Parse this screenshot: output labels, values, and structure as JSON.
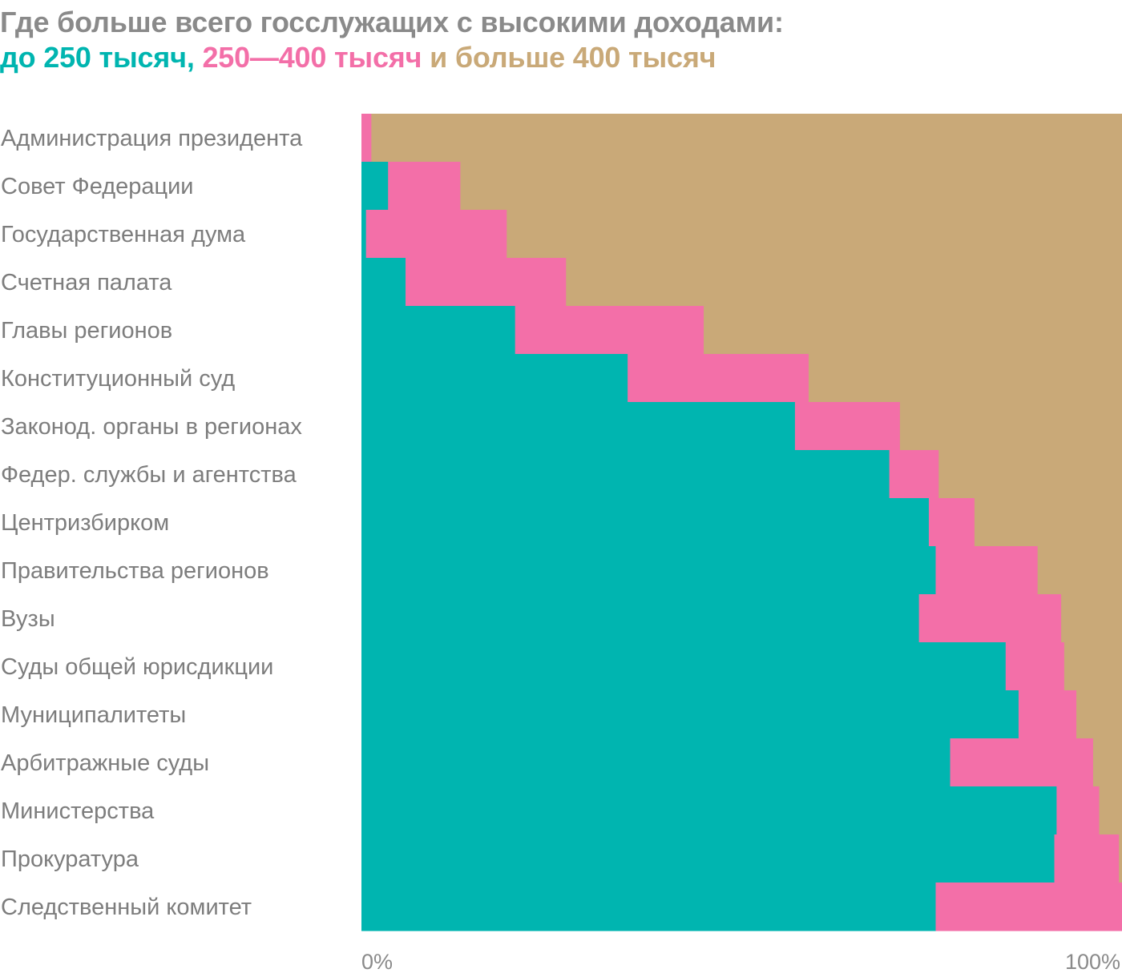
{
  "title": {
    "line1": "Где больше всего госслужащих с высокими доходами:",
    "seg_a": "до 250 тысяч,",
    "seg_b": "250—400 тысяч",
    "seg_c": "и больше 400 тысяч"
  },
  "chart_data": {
    "type": "bar",
    "orientation": "horizontal",
    "stacked": true,
    "normalized": true,
    "categories": [
      "Администрация президента",
      "Совет Федерации",
      "Государственная дума",
      "Счетная палата",
      "Главы регионов",
      "Конституционный суд",
      "Законод. органы в регионах",
      "Федер. службы и агентства",
      "Центризбирком",
      "Правительства регионов",
      "Вузы",
      "Суды общей юрисдикции",
      "Муниципалитеты",
      "Арбитражные суды",
      "Министерства",
      "Прокуратура",
      "Следственный комитет"
    ],
    "series": [
      {
        "name": "до 250 тысяч",
        "color": "#00b5b0",
        "values": [
          0,
          3.5,
          0.6,
          5.8,
          20.2,
          35.0,
          57.0,
          69.4,
          74.6,
          75.5,
          73.3,
          84.7,
          86.4,
          77.4,
          91.4,
          91.1,
          75.5
        ]
      },
      {
        "name": "250—400 тысяч",
        "color": "#f36fa8",
        "values": [
          1.3,
          9.5,
          18.5,
          21.1,
          24.8,
          23.8,
          13.8,
          6.5,
          6.0,
          13.4,
          18.7,
          7.7,
          7.6,
          18.8,
          5.6,
          8.5,
          24.5
        ]
      },
      {
        "name": "больше 400 тысяч",
        "color": "#c9a978",
        "values": [
          98.7,
          87.0,
          80.9,
          73.1,
          55.0,
          41.2,
          29.2,
          24.1,
          19.4,
          11.1,
          8.0,
          7.6,
          6.0,
          3.8,
          3.0,
          0.4,
          0
        ]
      }
    ],
    "xlim": [
      0,
      100
    ],
    "x_ticks": [
      "0%",
      "100%"
    ],
    "grid": false,
    "legend": "title"
  }
}
